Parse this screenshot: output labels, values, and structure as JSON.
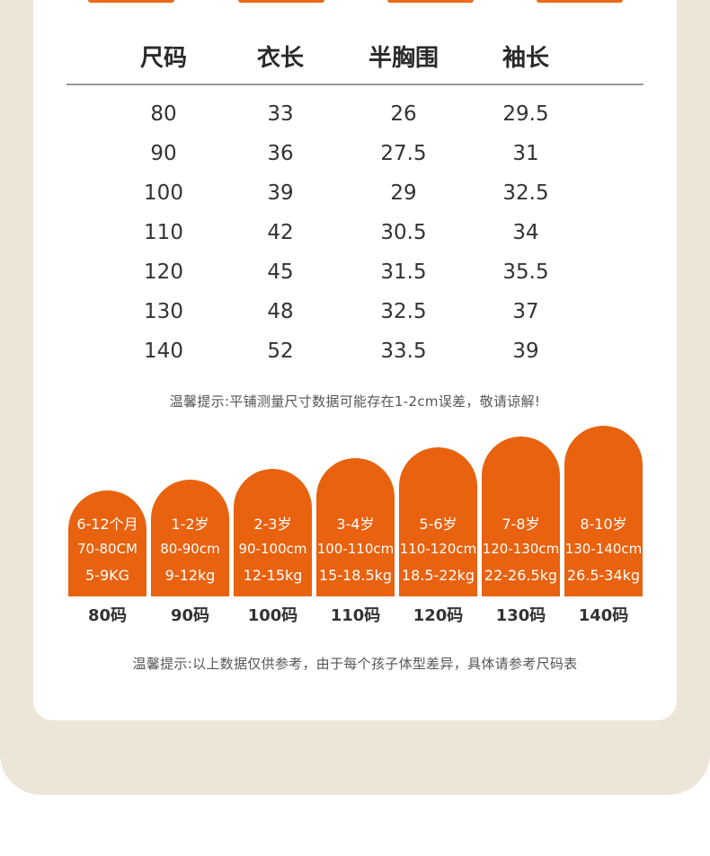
{
  "colors": {
    "accent": "#e8620f",
    "background": "#ede6d8",
    "card": "#ffffff"
  },
  "table": {
    "headers": [
      "尺码",
      "衣长",
      "半胸围",
      "袖长"
    ],
    "rows": [
      [
        "80",
        "33",
        "26",
        "29.5"
      ],
      [
        "90",
        "36",
        "27.5",
        "31"
      ],
      [
        "100",
        "39",
        "29",
        "32.5"
      ],
      [
        "110",
        "42",
        "30.5",
        "34"
      ],
      [
        "120",
        "45",
        "31.5",
        "35.5"
      ],
      [
        "130",
        "48",
        "32.5",
        "37"
      ],
      [
        "140",
        "52",
        "33.5",
        "39"
      ]
    ]
  },
  "note_measure": "温馨提示:平铺测量尺寸数据可能存在1-2cm误差，敬请谅解!",
  "size_chart": {
    "type": "bar",
    "bars": [
      {
        "size": "80码",
        "age": "6-12个月",
        "height": "70-80CM",
        "weight": "5-9KG"
      },
      {
        "size": "90码",
        "age": "1-2岁",
        "height": "80-90cm",
        "weight": "9-12kg"
      },
      {
        "size": "100码",
        "age": "2-3岁",
        "height": "90-100cm",
        "weight": "12-15kg"
      },
      {
        "size": "110码",
        "age": "3-4岁",
        "height": "100-110cm",
        "weight": "15-18.5kg"
      },
      {
        "size": "120码",
        "age": "5-6岁",
        "height": "110-120cm",
        "weight": "18.5-22kg"
      },
      {
        "size": "130码",
        "age": "7-8岁",
        "height": "120-130cm",
        "weight": "22-26.5kg"
      },
      {
        "size": "140码",
        "age": "8-10岁",
        "height": "130-140cm",
        "weight": "26.5-34kg"
      }
    ]
  },
  "note_reference": "温馨提示:以上数据仅供参考，由于每个孩子体型差异，具体请参考尺码表"
}
